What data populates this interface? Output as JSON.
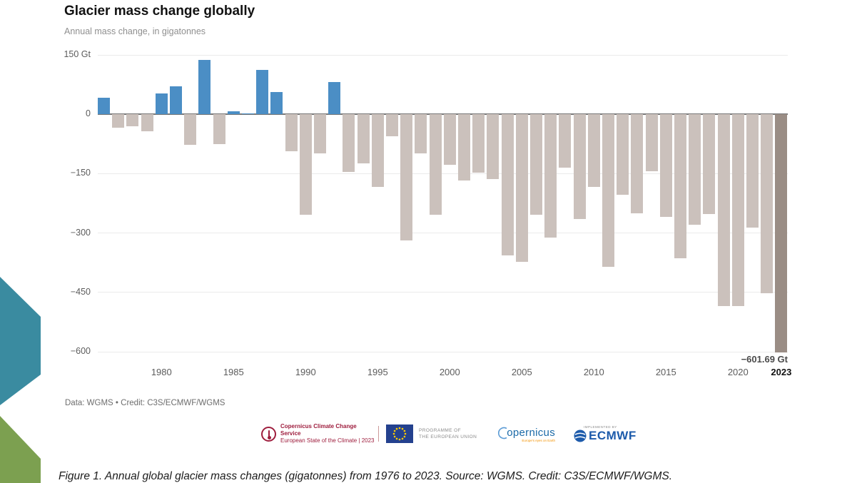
{
  "header": {
    "title": "Glacier mass change globally",
    "subtitle": "Annual mass change, in gigatonnes"
  },
  "chart_data": {
    "type": "bar",
    "title": "Glacier mass change globally",
    "subtitle": "Annual mass change, in gigatonnes",
    "unit": "Gt",
    "x": [
      1976,
      1977,
      1978,
      1979,
      1980,
      1981,
      1982,
      1983,
      1984,
      1985,
      1986,
      1987,
      1988,
      1989,
      1990,
      1991,
      1992,
      1993,
      1994,
      1995,
      1996,
      1997,
      1998,
      1999,
      2000,
      2001,
      2002,
      2003,
      2004,
      2005,
      2006,
      2007,
      2008,
      2009,
      2010,
      2011,
      2012,
      2013,
      2014,
      2015,
      2016,
      2017,
      2018,
      2019,
      2020,
      2021,
      2022,
      2023
    ],
    "values": [
      41,
      -34,
      -31,
      -43,
      52,
      70,
      -78,
      137,
      -76,
      7,
      3,
      113,
      56,
      -94,
      -254,
      -99,
      81,
      -146,
      -124,
      -184,
      -55,
      -318,
      -99,
      -254,
      -128,
      -167,
      -148,
      -164,
      -357,
      -372,
      -253,
      -312,
      -134,
      -264,
      -184,
      -385,
      -204,
      -251,
      -143,
      -260,
      -363,
      -280,
      -252,
      -484,
      -484,
      -286,
      -453,
      -601.69
    ],
    "ylim": [
      -600,
      150
    ],
    "grid": true,
    "yticks": [
      {
        "value": 150,
        "label": "150 Gt"
      },
      {
        "value": 0,
        "label": "0"
      },
      {
        "value": -150,
        "label": "−150"
      },
      {
        "value": -300,
        "label": "−300"
      },
      {
        "value": -450,
        "label": "−450"
      },
      {
        "value": -600,
        "label": "−600"
      }
    ],
    "xticks": [
      {
        "year": 1980,
        "label": "1980",
        "emphasis": false
      },
      {
        "year": 1985,
        "label": "1985",
        "emphasis": false
      },
      {
        "year": 1990,
        "label": "1990",
        "emphasis": false
      },
      {
        "year": 1995,
        "label": "1995",
        "emphasis": false
      },
      {
        "year": 2000,
        "label": "2000",
        "emphasis": false
      },
      {
        "year": 2005,
        "label": "2005",
        "emphasis": false
      },
      {
        "year": 2010,
        "label": "2010",
        "emphasis": false
      },
      {
        "year": 2015,
        "label": "2015",
        "emphasis": false
      },
      {
        "year": 2020,
        "label": "2020",
        "emphasis": false
      },
      {
        "year": 2023,
        "label": "2023",
        "emphasis": true
      }
    ],
    "annotation": {
      "year": 2023,
      "text": "−601.69 Gt"
    },
    "highlight_year": 2023,
    "colors": {
      "positive": "#4b8ec5",
      "negative": "#cbc1bc",
      "highlight": "#9a8d85",
      "accent_teal": "#3a8ba0",
      "accent_green": "#7ca050"
    }
  },
  "footer": {
    "source": "Data: WGMS • Credit: C3S/ECMWF/WGMS"
  },
  "logos": {
    "c3s_line1": "Copernicus Climate Change Service",
    "c3s_line2": "European State of the Climate | 2023",
    "eu_line1": "PROGRAMME OF",
    "eu_line2": "THE EUROPEAN UNION",
    "copernicus_word": "opernicus",
    "copernicus_tagline": "Europe's eyes on Earth",
    "ecmwf_implemented": "IMPLEMENTED BY",
    "ecmwf_word": "ECMWF"
  },
  "caption": "Figure 1. Annual global glacier mass changes (gigatonnes) from 1976 to 2023. Source: WGMS. Credit: C3S/ECMWF/WGMS."
}
